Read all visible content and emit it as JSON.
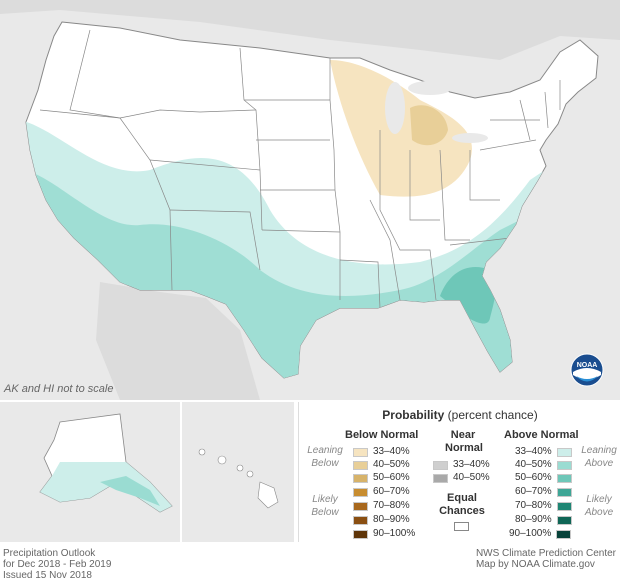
{
  "map": {
    "scale_note": "AK and HI not to scale",
    "logo_text": "NOAA"
  },
  "colors": {
    "below": [
      "#f6e4c0",
      "#e8cf98",
      "#d7b36a",
      "#c88d30",
      "#a8681d",
      "#8a4f12",
      "#5e3509"
    ],
    "near": [
      "#cfcfcf",
      "#a9a9a9"
    ],
    "above": [
      "#cdeeea",
      "#9adcd2",
      "#6ec7b8",
      "#3ea696",
      "#1f8674",
      "#0f6656",
      "#07423a"
    ],
    "equal": "#ffffff",
    "state_fill": "#ffffff",
    "state_border": "#888888",
    "background": "#e9e9e9"
  },
  "legend": {
    "title": "Probability",
    "title_suffix": "(percent chance)",
    "below_header": "Below Normal",
    "near_header_1": "Near",
    "near_header_2": "Normal",
    "above_header": "Above Normal",
    "leaning_below_1": "Leaning",
    "leaning_below_2": "Below",
    "likely_below_1": "Likely",
    "likely_below_2": "Below",
    "leaning_above_1": "Leaning",
    "leaning_above_2": "Above",
    "likely_above_1": "Likely",
    "likely_above_2": "Above",
    "ranges": [
      "33–40%",
      "40–50%",
      "50–60%",
      "60–70%",
      "70–80%",
      "80–90%",
      "90–100%"
    ],
    "near_ranges": [
      "33–40%",
      "40–50%"
    ],
    "equal_1": "Equal",
    "equal_2": "Chances"
  },
  "footer": {
    "left_1": "Precipitation Outlook",
    "left_2": "for Dec 2018 - Feb 2019",
    "left_3": "Issued 15 Nov 2018",
    "right_1": "NWS Climate Prediction Center",
    "right_2": "Map by NOAA Climate.gov"
  }
}
